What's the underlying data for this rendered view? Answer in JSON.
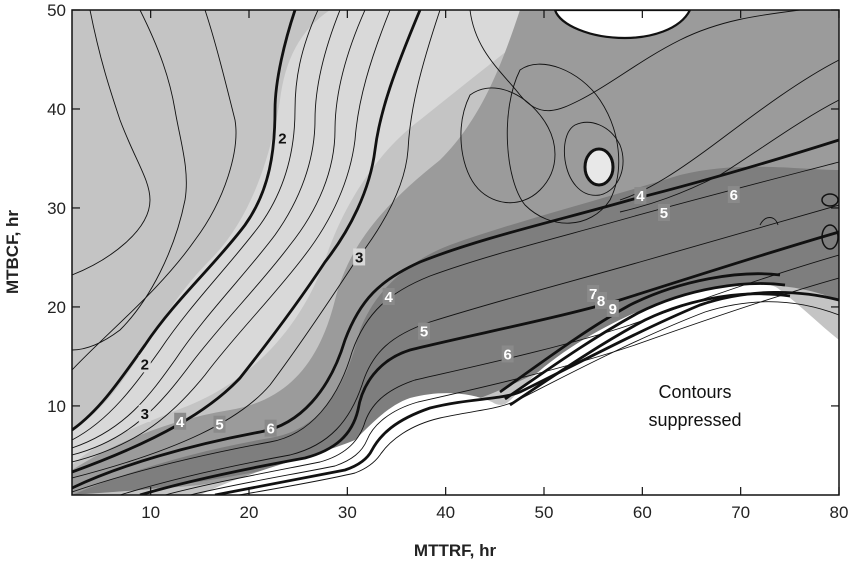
{
  "chart_data": {
    "type": "contour",
    "xlabel": "MTTRF, hr",
    "ylabel": "MTBCF, hr",
    "xlim": [
      2,
      80
    ],
    "ylim": [
      1,
      50
    ],
    "x_ticks": [
      10,
      20,
      30,
      40,
      50,
      60,
      70,
      80
    ],
    "y_ticks": [
      10,
      20,
      30,
      40,
      50
    ],
    "grid": false,
    "annotation": [
      "Contours",
      "suppressed"
    ],
    "contour_labels": [
      {
        "text": "2",
        "x": 23.4,
        "y": 37.0
      },
      {
        "text": "2",
        "x": 9.4,
        "y": 14.2
      },
      {
        "text": "3",
        "x": 31.2,
        "y": 25.0
      },
      {
        "text": "3",
        "x": 9.4,
        "y": 9.2
      },
      {
        "text": "4",
        "x": 34.2,
        "y": 21.0
      },
      {
        "text": "4",
        "x": 13.0,
        "y": 8.4
      },
      {
        "text": "4",
        "x": 59.8,
        "y": 31.2
      },
      {
        "text": "5",
        "x": 37.8,
        "y": 17.5
      },
      {
        "text": "5",
        "x": 17.0,
        "y": 8.1
      },
      {
        "text": "5",
        "x": 62.2,
        "y": 29.5
      },
      {
        "text": "6",
        "x": 46.3,
        "y": 15.2
      },
      {
        "text": "6",
        "x": 22.2,
        "y": 7.7
      },
      {
        "text": "6",
        "x": 69.3,
        "y": 31.3
      },
      {
        "text": "7",
        "x": 55.0,
        "y": 21.3
      },
      {
        "text": "8",
        "x": 55.8,
        "y": 20.6
      },
      {
        "text": "9",
        "x": 57.0,
        "y": 19.8
      }
    ],
    "color_scale": {
      "light": "#c4c4c4",
      "lighter": "#d9d9d9",
      "mid": "#9b9b9b",
      "dark": "#7e7e7e",
      "suppressed": "#ffffff",
      "line": "#111111"
    }
  }
}
